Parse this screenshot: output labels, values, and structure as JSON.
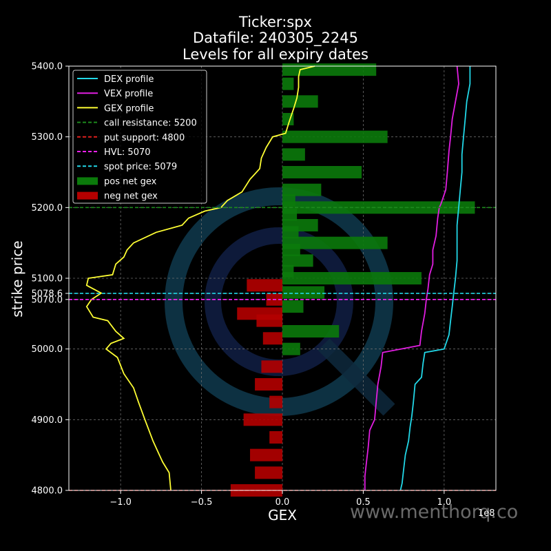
{
  "title_lines": [
    "Ticker:spx",
    "Datafile: 240305_2245",
    "Levels for all expiry dates"
  ],
  "watermark": "www.menthorq.co",
  "colors": {
    "background": "#000000",
    "dex": "#22d8e8",
    "vex": "#e21ee2",
    "gex": "#ffff33",
    "call_resistance": "#1d8a1d",
    "put_support": "#e0201e",
    "hvl": "#ff22ff",
    "spot": "#22d8e8",
    "pos_gex": "#0b7a0b",
    "neg_gex": "#b40000",
    "grid": "#6e6e6e"
  },
  "chart_data": {
    "type": "bar",
    "orientation": "horizontal",
    "xlabel": "GEX",
    "ylabel": "strike price",
    "x_offset_label": "1e8",
    "xlim": [
      -1.32,
      1.32
    ],
    "ylim": [
      4800,
      5400
    ],
    "xticks": [
      -1.0,
      -0.5,
      0.0,
      0.5,
      1.0
    ],
    "xtick_labels": [
      "−1.0",
      "−0.5",
      "0.0",
      "0.5",
      "1.0"
    ],
    "yticks": [
      4800,
      4900,
      5000,
      5070,
      5078.6,
      5100,
      5200,
      5300,
      5400
    ],
    "ytick_labels": [
      "4800.0",
      "4900.0",
      "5000.0",
      "5070.0",
      "5078.6",
      "5100.0",
      "5200.0",
      "5300.0",
      "5400.0"
    ],
    "grid": true,
    "legend_position": "top-left",
    "legend": [
      {
        "label": "DEX profile",
        "kind": "line",
        "color_key": "dex"
      },
      {
        "label": "VEX profile",
        "kind": "line",
        "color_key": "vex"
      },
      {
        "label": "GEX profile",
        "kind": "line",
        "color_key": "gex"
      },
      {
        "label": "call resistance: 5200",
        "kind": "dash",
        "color_key": "call_resistance"
      },
      {
        "label": "put support: 4800",
        "kind": "dash",
        "color_key": "put_support"
      },
      {
        "label": "HVL: 5070",
        "kind": "dash",
        "color_key": "hvl"
      },
      {
        "label": "spot price: 5079",
        "kind": "dash",
        "color_key": "spot"
      },
      {
        "label": "pos net gex",
        "kind": "patch",
        "color_key": "pos_gex"
      },
      {
        "label": "neg net gex",
        "kind": "patch",
        "color_key": "neg_gex"
      }
    ],
    "levels": {
      "call_resistance": 5200,
      "put_support": 4800,
      "hvl": 5070,
      "spot": 5078.6
    },
    "bars": [
      {
        "strike": 5395,
        "value": 0.58
      },
      {
        "strike": 5375,
        "value": 0.07
      },
      {
        "strike": 5350,
        "value": 0.22
      },
      {
        "strike": 5325,
        "value": 0.07
      },
      {
        "strike": 5300,
        "value": 0.65
      },
      {
        "strike": 5275,
        "value": 0.14
      },
      {
        "strike": 5250,
        "value": 0.49
      },
      {
        "strike": 5225,
        "value": 0.24
      },
      {
        "strike": 5210,
        "value": 0.08
      },
      {
        "strike": 5200,
        "value": 1.19
      },
      {
        "strike": 5190,
        "value": 0.09
      },
      {
        "strike": 5175,
        "value": 0.22
      },
      {
        "strike": 5165,
        "value": 0.1
      },
      {
        "strike": 5150,
        "value": 0.65
      },
      {
        "strike": 5140,
        "value": 0.11
      },
      {
        "strike": 5125,
        "value": 0.19
      },
      {
        "strike": 5110,
        "value": 0.07
      },
      {
        "strike": 5100,
        "value": 0.86
      },
      {
        "strike": 5090,
        "value": -0.22
      },
      {
        "strike": 5080,
        "value": 0.26
      },
      {
        "strike": 5070,
        "value": -0.1
      },
      {
        "strike": 5060,
        "value": 0.13
      },
      {
        "strike": 5050,
        "value": -0.28
      },
      {
        "strike": 5040,
        "value": -0.16
      },
      {
        "strike": 5025,
        "value": 0.35
      },
      {
        "strike": 5015,
        "value": -0.12
      },
      {
        "strike": 5000,
        "value": 0.11
      },
      {
        "strike": 4975,
        "value": -0.13
      },
      {
        "strike": 4950,
        "value": -0.17
      },
      {
        "strike": 4925,
        "value": -0.08
      },
      {
        "strike": 4900,
        "value": -0.24
      },
      {
        "strike": 4875,
        "value": -0.08
      },
      {
        "strike": 4850,
        "value": -0.2
      },
      {
        "strike": 4825,
        "value": -0.17
      },
      {
        "strike": 4800,
        "value": -0.32
      }
    ],
    "series": [
      {
        "name": "GEX profile",
        "color_key": "gex",
        "points": [
          [
            0.2,
            5400
          ],
          [
            0.11,
            5395
          ],
          [
            0.1,
            5385
          ],
          [
            0.1,
            5370
          ],
          [
            0.09,
            5355
          ],
          [
            0.07,
            5340
          ],
          [
            0.04,
            5320
          ],
          [
            0.02,
            5305
          ],
          [
            -0.06,
            5300
          ],
          [
            -0.1,
            5285
          ],
          [
            -0.13,
            5270
          ],
          [
            -0.14,
            5255
          ],
          [
            -0.2,
            5240
          ],
          [
            -0.25,
            5222
          ],
          [
            -0.34,
            5210
          ],
          [
            -0.38,
            5200
          ],
          [
            -0.48,
            5195
          ],
          [
            -0.58,
            5185
          ],
          [
            -0.62,
            5175
          ],
          [
            -0.78,
            5165
          ],
          [
            -0.92,
            5150
          ],
          [
            -0.96,
            5140
          ],
          [
            -0.98,
            5130
          ],
          [
            -1.03,
            5120
          ],
          [
            -1.05,
            5105
          ],
          [
            -1.2,
            5100
          ],
          [
            -1.21,
            5090
          ],
          [
            -1.12,
            5079
          ],
          [
            -1.18,
            5070
          ],
          [
            -1.21,
            5060
          ],
          [
            -1.17,
            5045
          ],
          [
            -1.08,
            5040
          ],
          [
            -1.03,
            5025
          ],
          [
            -0.98,
            5015
          ],
          [
            -1.06,
            5008
          ],
          [
            -1.09,
            5000
          ],
          [
            -1.02,
            4988
          ],
          [
            -0.98,
            4965
          ],
          [
            -0.92,
            4945
          ],
          [
            -0.89,
            4925
          ],
          [
            -0.85,
            4900
          ],
          [
            -0.83,
            4888
          ],
          [
            -0.8,
            4870
          ],
          [
            -0.76,
            4850
          ],
          [
            -0.74,
            4840
          ],
          [
            -0.7,
            4825
          ],
          [
            -0.69,
            4800
          ]
        ]
      },
      {
        "name": "VEX profile",
        "color_key": "vex",
        "points": [
          [
            1.08,
            5400
          ],
          [
            1.09,
            5375
          ],
          [
            1.07,
            5350
          ],
          [
            1.05,
            5325
          ],
          [
            1.04,
            5300
          ],
          [
            1.03,
            5280
          ],
          [
            1.02,
            5250
          ],
          [
            1.01,
            5225
          ],
          [
            0.98,
            5205
          ],
          [
            0.97,
            5200
          ],
          [
            0.96,
            5185
          ],
          [
            0.95,
            5160
          ],
          [
            0.93,
            5140
          ],
          [
            0.93,
            5120
          ],
          [
            0.91,
            5105
          ],
          [
            0.9,
            5085
          ],
          [
            0.89,
            5070
          ],
          [
            0.88,
            5050
          ],
          [
            0.86,
            5025
          ],
          [
            0.85,
            5005
          ],
          [
            0.62,
            4995
          ],
          [
            0.61,
            4975
          ],
          [
            0.59,
            4950
          ],
          [
            0.58,
            4925
          ],
          [
            0.57,
            4900
          ],
          [
            0.54,
            4885
          ],
          [
            0.53,
            4860
          ],
          [
            0.52,
            4840
          ],
          [
            0.51,
            4820
          ],
          [
            0.51,
            4800
          ]
        ]
      },
      {
        "name": "DEX profile",
        "color_key": "dex",
        "points": [
          [
            1.16,
            5400
          ],
          [
            1.16,
            5375
          ],
          [
            1.14,
            5350
          ],
          [
            1.13,
            5325
          ],
          [
            1.12,
            5300
          ],
          [
            1.11,
            5275
          ],
          [
            1.11,
            5250
          ],
          [
            1.1,
            5225
          ],
          [
            1.09,
            5200
          ],
          [
            1.08,
            5175
          ],
          [
            1.08,
            5150
          ],
          [
            1.08,
            5125
          ],
          [
            1.07,
            5100
          ],
          [
            1.06,
            5080
          ],
          [
            1.05,
            5060
          ],
          [
            1.04,
            5040
          ],
          [
            1.03,
            5020
          ],
          [
            1.0,
            5000
          ],
          [
            0.88,
            4995
          ],
          [
            0.87,
            4980
          ],
          [
            0.86,
            4960
          ],
          [
            0.82,
            4950
          ],
          [
            0.81,
            4925
          ],
          [
            0.8,
            4905
          ],
          [
            0.79,
            4890
          ],
          [
            0.78,
            4870
          ],
          [
            0.76,
            4850
          ],
          [
            0.75,
            4830
          ],
          [
            0.74,
            4810
          ],
          [
            0.73,
            4800
          ]
        ]
      }
    ]
  }
}
